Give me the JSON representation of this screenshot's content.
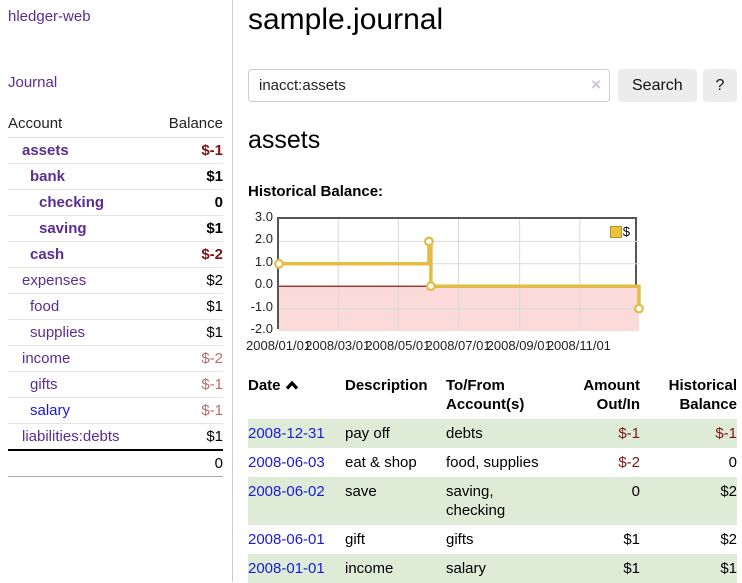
{
  "app": {
    "title": "hledger-web"
  },
  "nav": {
    "journal": "Journal"
  },
  "sidebar": {
    "columns": {
      "account": "Account",
      "balance": "Balance"
    },
    "accounts": [
      {
        "name": "assets",
        "depth": 1,
        "bold": true,
        "balance": "$-1"
      },
      {
        "name": "bank",
        "depth": 2,
        "bold": true,
        "balance": "$1"
      },
      {
        "name": "checking",
        "depth": 3,
        "bold": true,
        "balance": "0"
      },
      {
        "name": "saving",
        "depth": 3,
        "bold": true,
        "balance": "$1"
      },
      {
        "name": "cash",
        "depth": 2,
        "bold": true,
        "balance": "$-2"
      },
      {
        "name": "expenses",
        "depth": 1,
        "bold": false,
        "balance": "$2"
      },
      {
        "name": "food",
        "depth": 2,
        "bold": false,
        "balance": "$1"
      },
      {
        "name": "supplies",
        "depth": 2,
        "bold": false,
        "balance": "$1"
      },
      {
        "name": "income",
        "depth": 1,
        "bold": false,
        "balance": "$-2"
      },
      {
        "name": "gifts",
        "depth": 2,
        "bold": false,
        "balance": "$-1"
      },
      {
        "name": "salary",
        "depth": 2,
        "bold": false,
        "balance": "$-1",
        "link_color": "blue"
      },
      {
        "name": "liabilities:debts",
        "depth": 1,
        "bold": false,
        "balance": "$1"
      }
    ],
    "total": "0"
  },
  "main": {
    "title": "sample.journal",
    "search": {
      "value": "inacct:assets",
      "clear": "×",
      "button_label": "Search",
      "help_label": "?"
    },
    "heading": "assets",
    "chart_title": "Historical Balance:"
  },
  "chart_data": {
    "type": "line",
    "title": "Historical Balance:",
    "step": true,
    "xlim": [
      "2008-01-01",
      "2008-12-31"
    ],
    "ylim": [
      -2,
      3
    ],
    "x_ticks": [
      "2008/01/01",
      "2008/03/01",
      "2008/05/01",
      "2008/07/01",
      "2008/09/01",
      "2008/11/01"
    ],
    "y_ticks": [
      3.0,
      2.0,
      1.0,
      0.0,
      -1.0,
      -2.0
    ],
    "grid": true,
    "legend": {
      "label": "$",
      "position": "top-right"
    },
    "zero_line_color": "#8b0000",
    "negative_fill": "#fbdada",
    "series": [
      {
        "name": "$",
        "color": "#e3bc45",
        "points": [
          [
            "2008-01-01",
            1
          ],
          [
            "2008-06-01",
            2
          ],
          [
            "2008-06-03",
            0
          ],
          [
            "2008-12-31",
            -1
          ]
        ]
      }
    ]
  },
  "register": {
    "headers": {
      "date": "Date",
      "description": "Description",
      "accounts": "To/From Account(s)",
      "amount": "Amount Out/In",
      "balance": "Historical Balance"
    },
    "rows": [
      {
        "date": "2008-12-31",
        "description": "pay off",
        "accounts": [
          "debts"
        ],
        "amount": "$-1",
        "balance": "$-1"
      },
      {
        "date": "2008-06-03",
        "description": "eat & shop",
        "accounts": [
          "food",
          "supplies"
        ],
        "amount": "$-2",
        "balance": "0"
      },
      {
        "date": "2008-06-02",
        "description": "save",
        "accounts": [
          "saving",
          "checking"
        ],
        "amount": "0",
        "balance": "$2"
      },
      {
        "date": "2008-06-01",
        "description": "gift",
        "accounts": [
          "gifts"
        ],
        "amount": "$1",
        "balance": "$2"
      },
      {
        "date": "2008-01-01",
        "description": "income",
        "accounts": [
          "salary"
        ],
        "amount": "$1",
        "balance": "$1"
      }
    ]
  },
  "colors": {
    "link_purple": "#5c2d91",
    "link_blue": "#1a1ad6",
    "negative_strong": "#7f1412",
    "negative_soft": "#b96c6c",
    "negative_table": "#801515",
    "row_green": "#deecd7",
    "series_gold": "#e3bc45",
    "legend_gold": "#e8c23e",
    "zero_line": "#8b0000",
    "negative_region": "#fbdada"
  }
}
